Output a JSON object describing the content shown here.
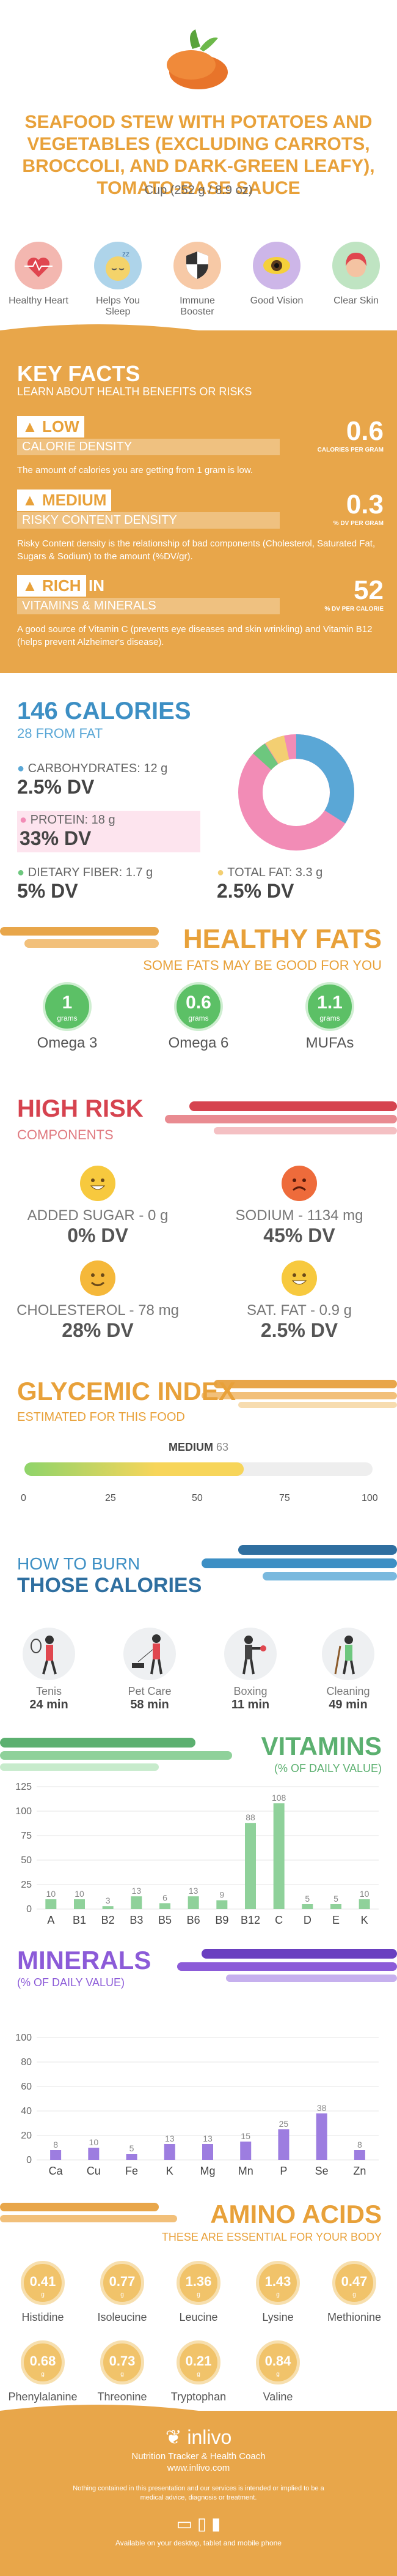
{
  "header": {
    "title": "SEAFOOD STEW WITH POTATOES AND VEGETABLES (EXCLUDING CARROTS, BROCCOLI, AND DARK-GREEN LEAFY), TOMATO-BASE SAUCE",
    "serving": "Cup (252 g / 8.9 oz)"
  },
  "benefits": [
    {
      "label": "Healthy Heart",
      "icon": "heart-icon"
    },
    {
      "label": "Helps You Sleep",
      "icon": "sleep-icon"
    },
    {
      "label": "Immune Booster",
      "icon": "shield-icon"
    },
    {
      "label": "Good Vision",
      "icon": "eye-icon"
    },
    {
      "label": "Clear Skin",
      "icon": "face-icon"
    }
  ],
  "key_facts": {
    "title": "KEY FACTS",
    "subtitle": "LEARN ABOUT HEALTH BENEFITS OR RISKS",
    "items": [
      {
        "tag": "LOW",
        "label": "CALORIE DENSITY",
        "value": "0.6",
        "unit": "CALORIES PER GRAM",
        "desc": "The amount of calories you are getting from 1 gram is low."
      },
      {
        "tag": "MEDIUM",
        "label": "RISKY CONTENT DENSITY",
        "value": "0.3",
        "unit": "% DV PER GRAM",
        "desc": "Risky Content density is the relationship of bad components (Cholesterol, Saturated Fat, Sugars & Sodium) to the amount (%DV/gr)."
      },
      {
        "tag": "RICH",
        "tag_suffix": "IN",
        "label": "VITAMINS & MINERALS",
        "value": "52",
        "unit": "% DV PER CALORIE",
        "desc": "A good source of Vitamin C (prevents eye diseases and skin wrinkling) and Vitamin B12 (helps prevent Alzheimer's disease)."
      }
    ]
  },
  "calories": {
    "title": "146 CALORIES",
    "fat": "28 FROM FAT",
    "carbs": {
      "label": "CARBOHYDRATES: 12 g",
      "dv": "2.5% DV",
      "color": "#5aa7d6"
    },
    "protein": {
      "label": "PROTEIN: 18 g",
      "dv": "33% DV",
      "color": "#f28cb6"
    },
    "fiber": {
      "label": "DIETARY FIBER: 1.7 g",
      "dv": "5% DV",
      "color": "#6dc77e"
    },
    "fat_total": {
      "label": "TOTAL FAT: 3.3 g",
      "dv": "2.5% DV",
      "color": "#f3cf72"
    }
  },
  "healthy_fats": {
    "title": "HEALTHY FATS",
    "subtitle": "SOME FATS MAY BE GOOD FOR YOU",
    "unit": "grams",
    "items": [
      {
        "value": "1",
        "name": "Omega 3"
      },
      {
        "value": "0.6",
        "name": "Omega 6"
      },
      {
        "value": "1.1",
        "name": "MUFAs"
      }
    ]
  },
  "high_risk": {
    "title": "HIGH RISK",
    "subtitle": "COMPONENTS",
    "items": [
      {
        "label": "ADDED SUGAR - 0 g",
        "dv": "0% DV"
      },
      {
        "label": "SODIUM - 1134 mg",
        "dv": "45% DV"
      },
      {
        "label": "CHOLESTEROL - 78 mg",
        "dv": "28% DV"
      },
      {
        "label": "SAT. FAT - 0.9 g",
        "dv": "2.5% DV"
      }
    ]
  },
  "glycemic": {
    "title": "GLYCEMIC INDEX",
    "subtitle": "ESTIMATED FOR THIS FOOD",
    "level": "MEDIUM",
    "value": "63",
    "ticks": [
      "0",
      "25",
      "50",
      "75",
      "100"
    ]
  },
  "burn": {
    "title1": "HOW TO BURN",
    "title2": "THOSE CALORIES",
    "items": [
      {
        "name": "Tenis",
        "time": "24 min",
        "icon": "tennis-icon"
      },
      {
        "name": "Pet Care",
        "time": "58 min",
        "icon": "dog-walk-icon"
      },
      {
        "name": "Boxing",
        "time": "11 min",
        "icon": "boxing-icon"
      },
      {
        "name": "Cleaning",
        "time": "49 min",
        "icon": "cleaning-icon"
      }
    ]
  },
  "chart_data": [
    {
      "type": "bar",
      "title": "VITAMINS",
      "subtitle": "(% OF DAILY VALUE)",
      "categories": [
        "A",
        "B1",
        "B2",
        "B3",
        "B5",
        "B6",
        "B9",
        "B12",
        "C",
        "D",
        "E",
        "K"
      ],
      "values": [
        10,
        10,
        3,
        13,
        6,
        13,
        9,
        88,
        108,
        5,
        5,
        10
      ],
      "ylim": [
        0,
        125
      ],
      "yticks": [
        0,
        25,
        50,
        75,
        100,
        125
      ],
      "color": "#8fd19a"
    },
    {
      "type": "bar",
      "title": "MINERALS",
      "subtitle": "(% OF DAILY VALUE)",
      "categories": [
        "Ca",
        "Cu",
        "Fe",
        "K",
        "Mg",
        "Mn",
        "P",
        "Se",
        "Zn"
      ],
      "values": [
        8,
        10,
        5,
        13,
        13,
        15,
        25,
        38,
        8
      ],
      "ylim": [
        0,
        100
      ],
      "yticks": [
        0,
        20,
        40,
        60,
        80,
        100
      ],
      "color": "#9d7de0"
    }
  ],
  "amino": {
    "title": "AMINO ACIDS",
    "subtitle": "THESE ARE ESSENTIAL FOR YOUR BODY",
    "unit": "g",
    "items": [
      {
        "value": "0.41",
        "name": "Histidine"
      },
      {
        "value": "0.77",
        "name": "Isoleucine"
      },
      {
        "value": "1.36",
        "name": "Leucine"
      },
      {
        "value": "1.43",
        "name": "Lysine"
      },
      {
        "value": "0.47",
        "name": "Methionine"
      },
      {
        "value": "0.68",
        "name": "Phenylalanine"
      },
      {
        "value": "0.73",
        "name": "Threonine"
      },
      {
        "value": "0.21",
        "name": "Tryptophan"
      },
      {
        "value": "0.84",
        "name": "Valine"
      }
    ]
  },
  "footer": {
    "brand": "inlivo",
    "tagline": "Nutrition Tracker & Health Coach",
    "url": "www.inlivo.com",
    "disclaimer": "Nothing contained in this presentation and our services is intended or implied to be a medical advice, diagnosis or treatment.",
    "available": "Available on your desktop, tablet and mobile phone"
  }
}
